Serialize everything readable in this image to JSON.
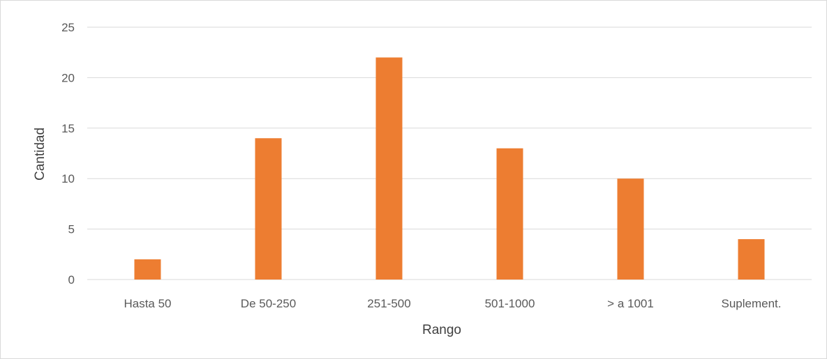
{
  "chart_data": {
    "type": "bar",
    "categories": [
      "Hasta 50",
      "De 50-250",
      "251-500",
      "501-1000",
      "> a 1001",
      "Suplement."
    ],
    "values": [
      2,
      14,
      22,
      13,
      10,
      4
    ],
    "xlabel": "Rango",
    "ylabel": "Cantidad",
    "ylim": [
      0,
      25
    ],
    "yticks": [
      0,
      5,
      10,
      15,
      20,
      25
    ],
    "grid": true,
    "legend": "none",
    "bar_color": "#ed7d31",
    "grid_color": "#d9d9d9"
  }
}
